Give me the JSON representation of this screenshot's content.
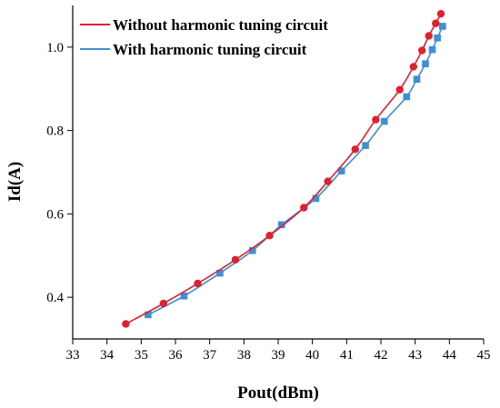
{
  "chart_data": {
    "type": "line",
    "title": "",
    "xlabel": "Pout(dBm)",
    "ylabel": "Id(A)",
    "xlim": [
      33,
      45
    ],
    "ylim": [
      0.3,
      1.1
    ],
    "x_ticks": [
      33,
      34,
      35,
      36,
      37,
      38,
      39,
      40,
      41,
      42,
      43,
      44,
      45
    ],
    "y_ticks": [
      0.4,
      0.6,
      0.8,
      1.0
    ],
    "x_tick_labels": [
      "33",
      "34",
      "35",
      "36",
      "37",
      "38",
      "39",
      "40",
      "41",
      "42",
      "43",
      "44",
      "45"
    ],
    "y_tick_labels": [
      "0.4",
      "0.6",
      "0.8",
      "1.0"
    ],
    "grid": false,
    "legend_position": "top-left",
    "series": [
      {
        "name": "Without harmonic tuning circuit",
        "color": "#e0202e",
        "marker": "circle",
        "points": [
          [
            34.55,
            0.336
          ],
          [
            35.65,
            0.385
          ],
          [
            36.65,
            0.433
          ],
          [
            37.75,
            0.49
          ],
          [
            38.75,
            0.548
          ],
          [
            39.75,
            0.615
          ],
          [
            40.45,
            0.678
          ],
          [
            41.25,
            0.755
          ],
          [
            41.85,
            0.826
          ],
          [
            42.55,
            0.898
          ],
          [
            42.95,
            0.953
          ],
          [
            43.2,
            0.992
          ],
          [
            43.4,
            1.027
          ],
          [
            43.6,
            1.057
          ],
          [
            43.75,
            1.08
          ]
        ]
      },
      {
        "name": "With harmonic tuning circuit",
        "color": "#3f8fd6",
        "marker": "square",
        "points": [
          [
            35.2,
            0.358
          ],
          [
            36.25,
            0.403
          ],
          [
            37.3,
            0.458
          ],
          [
            38.25,
            0.512
          ],
          [
            39.1,
            0.574
          ],
          [
            40.1,
            0.637
          ],
          [
            40.85,
            0.703
          ],
          [
            41.55,
            0.764
          ],
          [
            42.1,
            0.822
          ],
          [
            42.75,
            0.881
          ],
          [
            43.05,
            0.923
          ],
          [
            43.3,
            0.96
          ],
          [
            43.5,
            0.994
          ],
          [
            43.65,
            1.022
          ],
          [
            43.8,
            1.05
          ]
        ]
      }
    ]
  }
}
